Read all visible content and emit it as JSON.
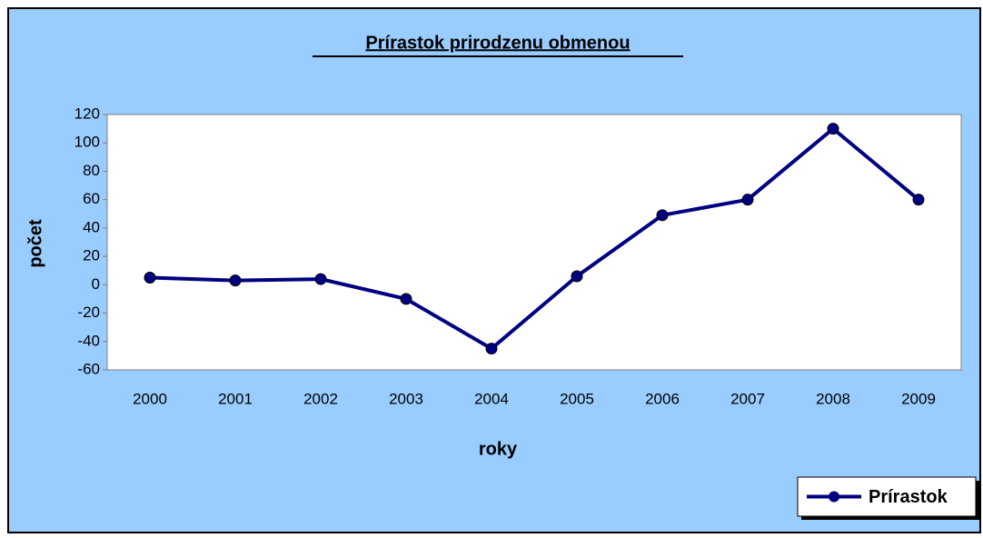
{
  "chart_data": {
    "type": "line",
    "title": "Prírastok prirodzenu obmenou",
    "x_label": "roky",
    "y_label": "počet",
    "categories": [
      "2000",
      "2001",
      "2002",
      "2003",
      "2004",
      "2005",
      "2006",
      "2007",
      "2008",
      "2009"
    ],
    "series": [
      {
        "name": "Prírastok",
        "color": "#000080",
        "values": [
          5,
          3,
          4,
          -10,
          -45,
          6,
          49,
          60,
          110,
          60
        ]
      }
    ],
    "ylim": [
      -60,
      120
    ],
    "yticks": [
      -60,
      -40,
      -20,
      0,
      20,
      40,
      60,
      80,
      100,
      120
    ],
    "legend": "lower right",
    "grid": false
  }
}
